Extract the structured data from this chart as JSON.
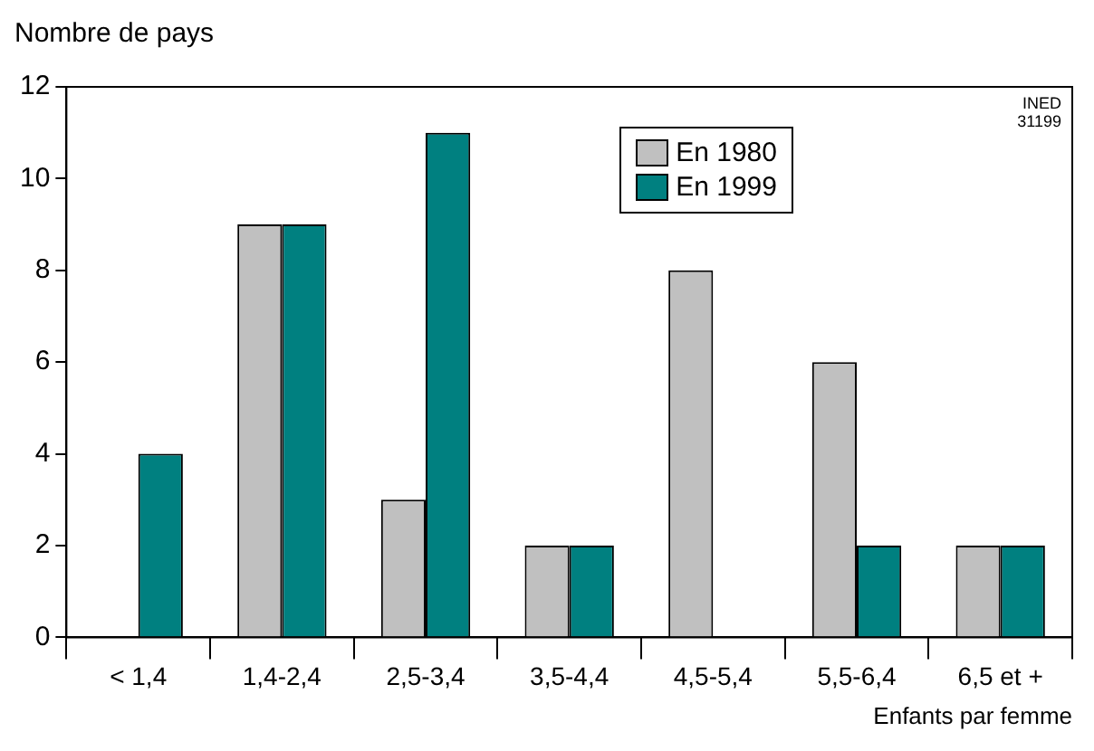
{
  "chart_data": {
    "type": "bar",
    "ylabel": "Nombre de pays",
    "xlabel": "Enfants par femme",
    "annotations": [
      "INED\n31199"
    ],
    "categories": [
      "< 1,4",
      "1,4-2,4",
      "2,5-3,4",
      "3,5-4,4",
      "4,5-5,4",
      "5,5-6,4",
      "6,5 et +"
    ],
    "series": [
      {
        "name": "En 1980",
        "color": "#c0c0c0",
        "values": [
          0,
          9,
          3,
          2,
          8,
          6,
          2
        ]
      },
      {
        "name": "En 1999",
        "color": "#008080",
        "values": [
          4,
          9,
          11,
          2,
          0,
          2,
          2
        ]
      }
    ],
    "ylim": [
      0,
      12
    ],
    "yticks": [
      0,
      2,
      4,
      6,
      8,
      10,
      12
    ],
    "grid": false,
    "legend": "top right"
  }
}
